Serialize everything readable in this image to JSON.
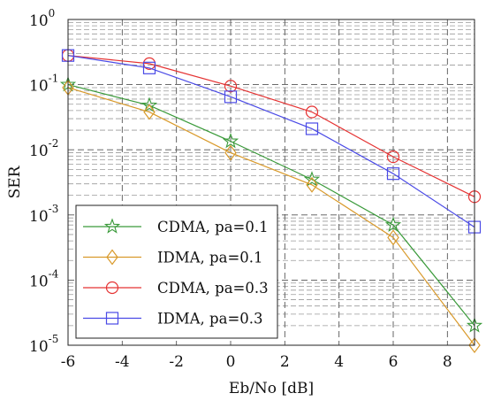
{
  "chart_data": {
    "type": "line",
    "xlabel": "Eb/No [dB]",
    "ylabel": "SER",
    "x": [
      -6,
      -3,
      0,
      3,
      6,
      9
    ],
    "xlim": [
      -6,
      9
    ],
    "xticks": [
      -6,
      -4,
      -2,
      0,
      2,
      4,
      6,
      8
    ],
    "ylim": [
      1e-05,
      1
    ],
    "yscale": "log",
    "yticks": [
      {
        "base": "10",
        "exp": "0",
        "value": 1
      },
      {
        "base": "10",
        "exp": "-1",
        "value": 0.1
      },
      {
        "base": "10",
        "exp": "-2",
        "value": 0.01
      },
      {
        "base": "10",
        "exp": "-3",
        "value": 0.001
      },
      {
        "base": "10",
        "exp": "-4",
        "value": 0.0001
      },
      {
        "base": "10",
        "exp": "-5",
        "value": 1e-05
      }
    ],
    "grid": true,
    "legend_position": "bottom-left",
    "series": [
      {
        "name": "CDMA, pa=0.1",
        "color": "#3a9a3a",
        "marker": "star",
        "values": [
          0.1,
          0.048,
          0.0135,
          0.0035,
          0.0007,
          2e-05
        ]
      },
      {
        "name": "IDMA, pa=0.1",
        "color": "#d99a2b",
        "marker": "diamond",
        "values": [
          0.09,
          0.038,
          0.009,
          0.0029,
          0.00045,
          1e-05
        ]
      },
      {
        "name": "CDMA, pa=0.3",
        "color": "#e53333",
        "marker": "circle",
        "values": [
          0.28,
          0.21,
          0.095,
          0.038,
          0.0078,
          0.0019
        ]
      },
      {
        "name": "IDMA, pa=0.3",
        "color": "#4a4ae6",
        "marker": "square",
        "values": [
          0.28,
          0.18,
          0.065,
          0.021,
          0.0043,
          0.00065
        ]
      }
    ]
  }
}
